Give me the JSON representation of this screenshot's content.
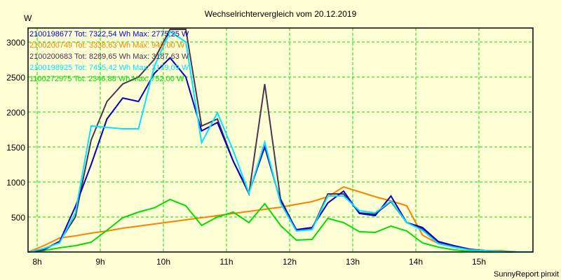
{
  "chart_data": {
    "type": "line",
    "title": "Wechselrichtervergleich vom 20.12.2019",
    "ylabel": "W",
    "xlabel": "",
    "footer": "SunnyReport pinxit",
    "ylim": [
      0,
      3200
    ],
    "xlim": [
      7.856,
      15.856
    ],
    "yticks": [
      500,
      1000,
      1500,
      2000,
      2500,
      3000
    ],
    "ytick_labels": [
      "500",
      "1000",
      "1500",
      "2000",
      "2500",
      "3000"
    ],
    "xticks": [
      8,
      9,
      10,
      11,
      12,
      13,
      14,
      15
    ],
    "xtick_labels": [
      "8h",
      "9h",
      "10h",
      "11h",
      "12h",
      "13h",
      "14h",
      "15h"
    ],
    "grid": true,
    "legend_position": "top-left",
    "x": [
      7.856,
      8.106,
      8.356,
      8.606,
      8.856,
      9.106,
      9.356,
      9.606,
      9.856,
      10.106,
      10.356,
      10.606,
      10.856,
      11.106,
      11.356,
      11.606,
      11.856,
      12.106,
      12.356,
      12.606,
      12.856,
      13.106,
      13.356,
      13.606,
      13.856,
      14.106,
      14.356,
      14.606,
      14.856,
      15.106,
      15.356,
      15.606,
      15.856
    ],
    "series": [
      {
        "name": "2100198677 Tot: 7322,54 Wh Max: 2775,25 W",
        "color": "#0000cc",
        "values": [
          0,
          40,
          150,
          650,
          1250,
          1900,
          2200,
          2150,
          2550,
          2775,
          2500,
          1730,
          1850,
          1300,
          850,
          1500,
          730,
          320,
          350,
          700,
          870,
          550,
          520,
          800,
          420,
          350,
          150,
          90,
          40,
          20,
          5,
          0,
          0
        ]
      },
      {
        "name": "2100200749 Tot: 3338,63 Wh Max: 940,00 W",
        "color": "#ff8000",
        "values": [
          0,
          90,
          200,
          230,
          270,
          300,
          340,
          370,
          400,
          430,
          460,
          490,
          520,
          550,
          580,
          610,
          640,
          680,
          720,
          790,
          930,
          860,
          790,
          730,
          660,
          240,
          120,
          70,
          30,
          20,
          20,
          0,
          0
        ]
      },
      {
        "name": "2100200683 Tot: 8289,65 Wh Max: 3187,63 W",
        "color": "#4d3350",
        "values": [
          0,
          30,
          150,
          500,
          1600,
          2150,
          2400,
          2500,
          2750,
          3180,
          3180,
          1800,
          1900,
          1300,
          830,
          2400,
          760,
          310,
          330,
          830,
          830,
          560,
          540,
          720,
          420,
          330,
          140,
          80,
          30,
          20,
          5,
          0,
          0
        ]
      },
      {
        "name": "2100198925 Tot: 7455,42 Wh Max: 3179,09 W",
        "color": "#00e5ff",
        "values": [
          0,
          50,
          130,
          560,
          1800,
          1780,
          1760,
          1760,
          2650,
          3150,
          3000,
          1560,
          1990,
          1450,
          840,
          1570,
          700,
          300,
          320,
          800,
          800,
          590,
          560,
          730,
          420,
          310,
          120,
          70,
          30,
          20,
          10,
          0,
          0
        ]
      },
      {
        "name": "1100272975 Tot: 2346,88 Wh Max: 752,00 W",
        "color": "#00dd00",
        "values": [
          0,
          20,
          60,
          90,
          140,
          310,
          490,
          570,
          630,
          750,
          660,
          380,
          500,
          570,
          420,
          690,
          380,
          170,
          180,
          480,
          420,
          290,
          280,
          370,
          300,
          130,
          70,
          30,
          10,
          0,
          0,
          0,
          0
        ]
      }
    ]
  }
}
